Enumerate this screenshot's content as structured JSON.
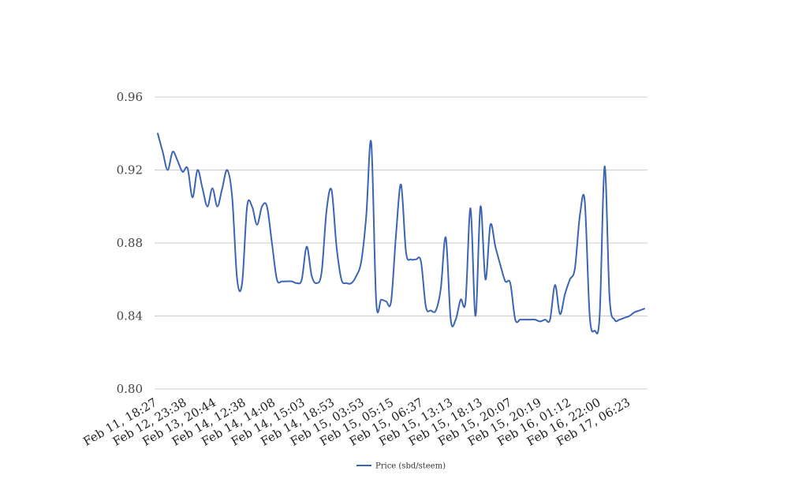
{
  "chart_data": {
    "type": "line",
    "title": "",
    "xlabel": "",
    "ylabel": "",
    "ylim": [
      0.8,
      0.96
    ],
    "yticks": [
      "0.80",
      "0.84",
      "0.88",
      "0.92",
      "0.96"
    ],
    "grid": true,
    "legend_position": "bottom-center",
    "x_tick_labels": [
      "Feb 11, 18:27",
      "Feb 12, 23:38",
      "Feb 13, 20:44",
      "Feb 14, 12:38",
      "Feb 14, 14:08",
      "Feb 14, 15:03",
      "Feb 14, 18:53",
      "Feb 15, 03:53",
      "Feb 15, 05:15",
      "Feb 15, 06:37",
      "Feb 15, 13:13",
      "Feb 15, 18:13",
      "Feb 15, 20:07",
      "Feb 15, 20:19",
      "Feb 16, 01:12",
      "Feb 16, 22:00",
      "Feb 17, 06:23"
    ],
    "series": [
      {
        "name": "Price (sbd/steem)",
        "color": "#3b64b3",
        "values": [
          0.94,
          0.93,
          0.92,
          0.93,
          0.925,
          0.919,
          0.921,
          0.905,
          0.92,
          0.91,
          0.9,
          0.91,
          0.9,
          0.91,
          0.92,
          0.905,
          0.86,
          0.858,
          0.9,
          0.9,
          0.89,
          0.9,
          0.9,
          0.88,
          0.86,
          0.859,
          0.859,
          0.859,
          0.858,
          0.86,
          0.878,
          0.862,
          0.858,
          0.864,
          0.898,
          0.909,
          0.878,
          0.86,
          0.858,
          0.858,
          0.862,
          0.87,
          0.895,
          0.935,
          0.848,
          0.849,
          0.848,
          0.848,
          0.885,
          0.912,
          0.875,
          0.871,
          0.871,
          0.87,
          0.845,
          0.843,
          0.843,
          0.855,
          0.883,
          0.838,
          0.838,
          0.849,
          0.848,
          0.899,
          0.84,
          0.9,
          0.86,
          0.89,
          0.878,
          0.868,
          0.859,
          0.858,
          0.838,
          0.838,
          0.838,
          0.838,
          0.838,
          0.837,
          0.838,
          0.838,
          0.857,
          0.841,
          0.852,
          0.86,
          0.866,
          0.895,
          0.903,
          0.84,
          0.832,
          0.84,
          0.922,
          0.85,
          0.838,
          0.838,
          0.839,
          0.84,
          0.842,
          0.843,
          0.844
        ]
      }
    ]
  }
}
